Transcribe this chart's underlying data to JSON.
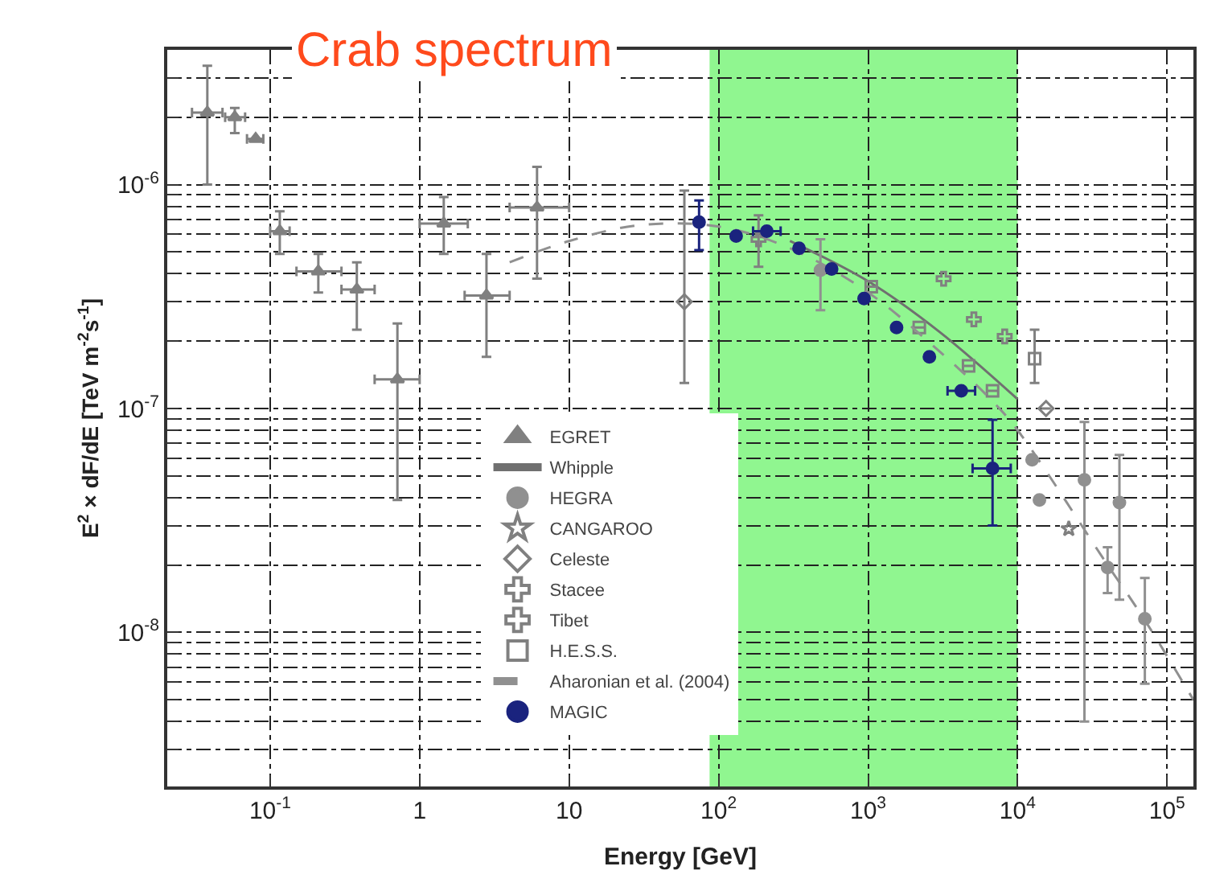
{
  "chart_data": {
    "type": "scatter",
    "title": "Crab spectrum",
    "xlabel": "Energy [GeV]",
    "ylabel": "E$^{2}$ × dF/dE [TeV m$^{-2}$s$^{-1}$]",
    "log": "xy",
    "grid": true,
    "legend": "bottom",
    "xlim": [
      0.0205,
      150000
    ],
    "ylim": [
      2.05e-09,
      4e-06
    ],
    "xticks": [
      {
        "value": 0.1,
        "label": "10$^{-1}$"
      },
      1,
      10,
      {
        "value": 100,
        "label": "10$^{2}$"
      },
      {
        "value": 1000,
        "label": "10$^{3}$"
      },
      {
        "value": 10000,
        "label": "10$^{4}$"
      },
      {
        "value": 100000,
        "label": "10$^{5}$"
      }
    ],
    "yticks": [
      {
        "value": 3e-09,
        "label": null
      },
      {
        "value": 4e-09,
        "label": null
      },
      {
        "value": 5e-09,
        "label": null
      },
      {
        "value": 6e-09,
        "label": null
      },
      {
        "value": 7e-09,
        "label": null
      },
      {
        "value": 8e-09,
        "label": null
      },
      {
        "value": 9e-09,
        "label": null
      },
      {
        "value": 1e-08,
        "label": "10$^{-8}$"
      },
      {
        "value": 2e-08,
        "label": null
      },
      {
        "value": 3e-08,
        "label": null
      },
      {
        "value": 4e-08,
        "label": null
      },
      {
        "value": 5e-08,
        "label": null
      },
      {
        "value": 6e-08,
        "label": null
      },
      {
        "value": 7e-08,
        "label": null
      },
      {
        "value": 8e-08,
        "label": null
      },
      {
        "value": 9e-08,
        "label": null
      },
      {
        "value": 1e-07,
        "label": "10$^{-7}$"
      },
      {
        "value": 2e-07,
        "label": null
      },
      {
        "value": 3e-07,
        "label": null
      },
      {
        "value": 4e-07,
        "label": null
      },
      {
        "value": 5e-07,
        "label": null
      },
      {
        "value": 6e-07,
        "label": null
      },
      {
        "value": 7e-07,
        "label": null
      },
      {
        "value": 8e-07,
        "label": null
      },
      {
        "value": 9e-07,
        "label": null
      },
      {
        "value": 1e-06,
        "label": "10$^{-6}$"
      },
      {
        "value": 2e-06,
        "label": null
      },
      {
        "value": 3e-06,
        "label": null
      }
    ],
    "bands": [
      {
        "axis": "x",
        "from": 87,
        "to": 10000,
        "color": "#22ee22"
      }
    ],
    "series": [
      {
        "name": "EGRET",
        "marker": "triangle",
        "color": "#808080",
        "x": [
          0.038,
          0.058,
          0.08,
          0.116,
          0.21,
          0.38,
          0.71,
          1.45,
          2.8,
          6.1
        ],
        "values": [
          2.1e-06,
          2e-06,
          1.6e-06,
          6.2e-07,
          4.1e-07,
          3.4e-07,
          1.35e-07,
          6.7e-07,
          3.2e-07,
          7.9e-07
        ],
        "errors": [
          [
            1e-06,
            3.4e-06
          ],
          [
            1.7e-06,
            2.2e-06
          ],
          null,
          [
            4.9e-07,
            7.6e-07
          ],
          [
            3.3e-07,
            4.9e-07
          ],
          [
            2.25e-07,
            4.5e-07
          ],
          [
            3.9e-08,
            2.4e-07
          ],
          [
            4.9e-07,
            8.8e-07
          ],
          [
            1.7e-07,
            4.9e-07
          ],
          [
            3.8e-07,
            1.2e-06
          ]
        ],
        "xerrors": [
          [
            0.03,
            0.048
          ],
          [
            0.05,
            0.068
          ],
          [
            0.07,
            0.09
          ],
          [
            0.1,
            0.135
          ],
          [
            0.15,
            0.3
          ],
          [
            0.3,
            0.5
          ],
          [
            0.5,
            1.0
          ],
          [
            1.0,
            2.1
          ],
          [
            2.0,
            4.0
          ],
          [
            4.0,
            10
          ]
        ]
      },
      {
        "name": "Whipple",
        "type": "line",
        "marker": "none",
        "line_style": "solid",
        "color": "#707070",
        "x": [
          300,
          1000,
          3000,
          10000
        ],
        "values": [
          5.6e-07,
          3.7e-07,
          2.2e-07,
          1.1e-07
        ]
      },
      {
        "name": "HEGRA",
        "marker": "circle",
        "color": "#909090",
        "x": [
          480,
          12500,
          14000,
          28000,
          40000,
          48000,
          71000
        ],
        "values": [
          4.15e-07,
          5.9e-08,
          3.9e-08,
          4.8e-08,
          1.95e-08,
          3.8e-08,
          1.15e-08
        ],
        "errors": [
          [
            2.75e-07,
            5.7e-07
          ],
          null,
          null,
          [
            4e-09,
            8.7e-08
          ],
          [
            1.5e-08,
            2.4e-08
          ],
          [
            1.4e-08,
            6.2e-08
          ],
          [
            5.9e-09,
            1.75e-08
          ]
        ]
      },
      {
        "name": "CANGAROO",
        "marker": "star",
        "color": "#808080",
        "x": [
          22000
        ],
        "values": [
          2.9e-08
        ]
      },
      {
        "name": "Celeste",
        "marker": "diamond",
        "color": "#808080",
        "x": [
          59,
          15500
        ],
        "values": [
          3e-07,
          1e-07
        ],
        "errors": [
          [
            1.3e-07,
            9.4e-07
          ],
          null
        ]
      },
      {
        "name": "Stacee",
        "marker": "cross",
        "color": "#808080",
        "x": [
          185
        ],
        "values": [
          5.7e-07
        ],
        "errors": [
          [
            4.3e-07,
            7.3e-07
          ]
        ]
      },
      {
        "name": "Tibet",
        "marker": "cross",
        "color": "#808080",
        "x": [
          3200,
          5100,
          8200
        ],
        "values": [
          3.8e-07,
          2.5e-07,
          2.1e-07
        ]
      },
      {
        "name": "H.E.S.S.",
        "marker": "square",
        "color": "#808080",
        "x": [
          1050,
          2200,
          4700,
          6800,
          13000
        ],
        "values": [
          3.5e-07,
          2.3e-07,
          1.55e-07,
          1.2e-07,
          1.67e-07
        ],
        "errors": [
          null,
          null,
          null,
          null,
          [
            1.3e-07,
            2.25e-07
          ]
        ]
      },
      {
        "name": "Aharonian et al. (2004)",
        "type": "line",
        "marker": "none",
        "line_style": "dashed",
        "color": "#909090",
        "x": [
          4,
          10,
          30,
          100,
          300,
          1000,
          3000,
          6600,
          10000,
          40000,
          70000,
          150000
        ],
        "values": [
          4.5e-07,
          5.6e-07,
          6.6e-07,
          6.5e-07,
          5.2e-07,
          3.3e-07,
          1.8e-07,
          1.1e-07,
          8e-08,
          2e-08,
          1.15e-08,
          5e-09
        ]
      },
      {
        "name": "MAGIC",
        "marker": "circle",
        "color": "#1a237e",
        "x": [
          74,
          131,
          210,
          345,
          570,
          940,
          1550,
          2570,
          4200,
          6800
        ],
        "values": [
          6.8e-07,
          5.9e-07,
          6.2e-07,
          5.2e-07,
          4.2e-07,
          3.1e-07,
          2.3e-07,
          1.7e-07,
          1.2e-07,
          5.4e-08
        ],
        "errors": [
          [
            5.1e-07,
            8.5e-07
          ],
          null,
          null,
          null,
          null,
          null,
          null,
          null,
          null,
          [
            3e-08,
            8.9e-08
          ]
        ],
        "xerrors": [
          null,
          null,
          [
            170,
            260
          ],
          null,
          null,
          null,
          null,
          null,
          [
            3400,
            5200
          ],
          [
            5000,
            9000
          ]
        ]
      }
    ]
  }
}
